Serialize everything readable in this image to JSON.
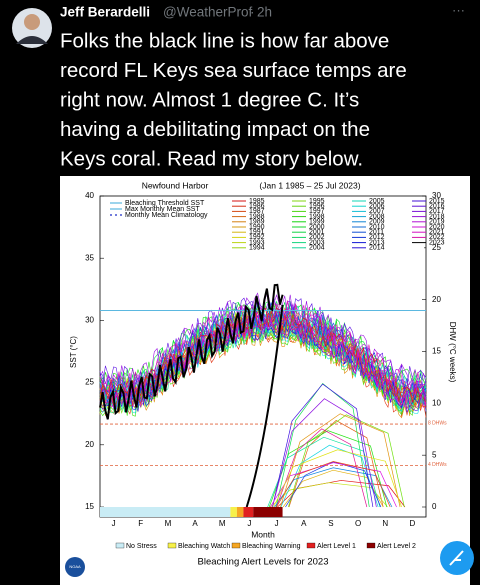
{
  "tweet": {
    "name": "Jeff Berardelli",
    "handle": "@WeatherProf",
    "time": "2h",
    "more": "···",
    "text_lines": [
      "Folks the black line is how far above",
      "record FL Keys sea surface temps are",
      "right now. Almost 1 degree C. It’s",
      "having a debilitating impact on the",
      "Keys coral. Read my story below."
    ]
  },
  "image": {
    "site": "Newfound Harbor",
    "period": "(Jan 1 1985 – 25 Jul 2023)",
    "y_label": "SST (°C)",
    "y2_label": "DHW (°C weeks)",
    "x_label": "Month",
    "yticks": [
      15,
      20,
      25,
      30,
      35,
      40
    ],
    "y2ticks": [
      0,
      5,
      10,
      15,
      20,
      25,
      30
    ],
    "months": [
      "J",
      "F",
      "M",
      "A",
      "M",
      "J",
      "J",
      "A",
      "S",
      "O",
      "N",
      "D"
    ],
    "legend": [
      "Bleaching Threshold SST",
      "Max Monthly Mean SST",
      "Monthly Mean Climatology"
    ],
    "years": [
      [
        "1985",
        "1986",
        "1987",
        "1988",
        "1989",
        "1990",
        "1991",
        "1992",
        "1993",
        "1994"
      ],
      [
        "1995",
        "1996",
        "1997",
        "1998",
        "1999",
        "2000",
        "2001",
        "2002",
        "2003",
        "2004"
      ],
      [
        "2005",
        "2006",
        "2007",
        "2008",
        "2009",
        "2010",
        "2011",
        "2012",
        "2013",
        "2014"
      ],
      [
        "2015",
        "2016",
        "2017",
        "2018",
        "2019",
        "2020",
        "2021",
        "2022",
        "2023"
      ]
    ],
    "dhw_lines": [
      {
        "value": 8,
        "label": "8 DHWs"
      },
      {
        "value": 4,
        "label": "4 DHWs"
      }
    ],
    "alert_legend": [
      "No Stress",
      "Bleaching Watch",
      "Bleaching Warning",
      "Alert Level 1",
      "Alert Level 2"
    ],
    "alert_title": "Bleaching Alert Levels for 2023",
    "logo": "NOAA"
  }
}
